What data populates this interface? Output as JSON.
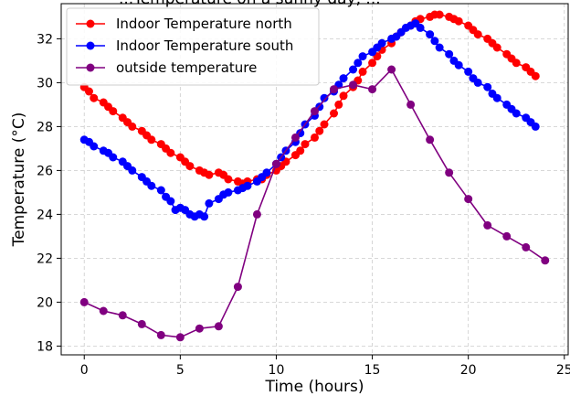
{
  "chart_data": {
    "type": "line",
    "title": "...Temperature on a sunny day, ...",
    "xlabel": "Time (hours)",
    "ylabel": "Temperature (°C)",
    "xlim": [
      -1.2,
      25.2
    ],
    "ylim": [
      17.6,
      33.6
    ],
    "xticks": [
      0,
      5,
      10,
      15,
      20,
      25
    ],
    "yticks": [
      18,
      20,
      22,
      24,
      26,
      28,
      30,
      32
    ],
    "grid": true,
    "legend_position": "top-left",
    "series": [
      {
        "name": "Indoor Temperature north",
        "color": "#ff0000",
        "marker_size": 4.5,
        "points": [
          [
            0,
            29.8
          ],
          [
            0.25,
            29.6
          ],
          [
            0.5,
            29.3
          ],
          [
            1,
            29.1
          ],
          [
            1.25,
            28.9
          ],
          [
            1.5,
            28.7
          ],
          [
            2,
            28.4
          ],
          [
            2.25,
            28.2
          ],
          [
            2.5,
            28.0
          ],
          [
            3,
            27.8
          ],
          [
            3.25,
            27.6
          ],
          [
            3.5,
            27.4
          ],
          [
            4,
            27.2
          ],
          [
            4.25,
            27.0
          ],
          [
            4.5,
            26.8
          ],
          [
            5,
            26.6
          ],
          [
            5.25,
            26.4
          ],
          [
            5.5,
            26.2
          ],
          [
            6,
            26.0
          ],
          [
            6.25,
            25.9
          ],
          [
            6.5,
            25.8
          ],
          [
            7,
            25.9
          ],
          [
            7.25,
            25.8
          ],
          [
            7.5,
            25.6
          ],
          [
            8,
            25.5
          ],
          [
            8.25,
            25.4
          ],
          [
            8.5,
            25.5
          ],
          [
            9,
            25.6
          ],
          [
            9.25,
            25.6
          ],
          [
            9.5,
            25.8
          ],
          [
            10,
            26.0
          ],
          [
            10.25,
            26.2
          ],
          [
            10.5,
            26.4
          ],
          [
            11,
            26.7
          ],
          [
            11.25,
            26.9
          ],
          [
            11.5,
            27.2
          ],
          [
            12,
            27.5
          ],
          [
            12.25,
            27.8
          ],
          [
            12.5,
            28.1
          ],
          [
            13,
            28.6
          ],
          [
            13.25,
            29.0
          ],
          [
            13.5,
            29.4
          ],
          [
            14,
            29.8
          ],
          [
            14.25,
            30.1
          ],
          [
            14.5,
            30.5
          ],
          [
            15,
            30.9
          ],
          [
            15.25,
            31.2
          ],
          [
            15.5,
            31.5
          ],
          [
            16,
            31.8
          ],
          [
            16.25,
            32.1
          ],
          [
            16.5,
            32.3
          ],
          [
            17,
            32.6
          ],
          [
            17.25,
            32.8
          ],
          [
            17.5,
            32.9
          ],
          [
            18,
            33.0
          ],
          [
            18.25,
            33.1
          ],
          [
            18.5,
            33.1
          ],
          [
            19,
            33.0
          ],
          [
            19.25,
            32.9
          ],
          [
            19.5,
            32.8
          ],
          [
            20,
            32.6
          ],
          [
            20.25,
            32.4
          ],
          [
            20.5,
            32.2
          ],
          [
            21,
            32.0
          ],
          [
            21.25,
            31.8
          ],
          [
            21.5,
            31.6
          ],
          [
            22,
            31.3
          ],
          [
            22.25,
            31.1
          ],
          [
            22.5,
            30.9
          ],
          [
            23,
            30.7
          ],
          [
            23.25,
            30.5
          ],
          [
            23.5,
            30.3
          ]
        ]
      },
      {
        "name": "Indoor Temperature south",
        "color": "#0000ff",
        "marker_size": 4.5,
        "points": [
          [
            0,
            27.4
          ],
          [
            0.25,
            27.3
          ],
          [
            0.5,
            27.1
          ],
          [
            1,
            26.9
          ],
          [
            1.25,
            26.8
          ],
          [
            1.5,
            26.6
          ],
          [
            2,
            26.4
          ],
          [
            2.25,
            26.2
          ],
          [
            2.5,
            26.0
          ],
          [
            3,
            25.7
          ],
          [
            3.25,
            25.5
          ],
          [
            3.5,
            25.3
          ],
          [
            4,
            25.1
          ],
          [
            4.25,
            24.8
          ],
          [
            4.5,
            24.6
          ],
          [
            4.75,
            24.2
          ],
          [
            5,
            24.3
          ],
          [
            5.25,
            24.2
          ],
          [
            5.5,
            24.0
          ],
          [
            5.75,
            23.9
          ],
          [
            6,
            24.0
          ],
          [
            6.25,
            23.9
          ],
          [
            6.5,
            24.5
          ],
          [
            7,
            24.7
          ],
          [
            7.25,
            24.9
          ],
          [
            7.5,
            25.0
          ],
          [
            8,
            25.1
          ],
          [
            8.25,
            25.2
          ],
          [
            8.5,
            25.3
          ],
          [
            9,
            25.5
          ],
          [
            9.25,
            25.7
          ],
          [
            9.5,
            25.9
          ],
          [
            10,
            26.3
          ],
          [
            10.25,
            26.6
          ],
          [
            10.5,
            26.9
          ],
          [
            11,
            27.3
          ],
          [
            11.25,
            27.7
          ],
          [
            11.5,
            28.1
          ],
          [
            12,
            28.5
          ],
          [
            12.25,
            28.9
          ],
          [
            12.5,
            29.3
          ],
          [
            13,
            29.6
          ],
          [
            13.25,
            29.9
          ],
          [
            13.5,
            30.2
          ],
          [
            14,
            30.6
          ],
          [
            14.25,
            30.9
          ],
          [
            14.5,
            31.2
          ],
          [
            15,
            31.4
          ],
          [
            15.25,
            31.6
          ],
          [
            15.5,
            31.8
          ],
          [
            16,
            32.0
          ],
          [
            16.25,
            32.1
          ],
          [
            16.5,
            32.3
          ],
          [
            16.75,
            32.5
          ],
          [
            17,
            32.6
          ],
          [
            17.25,
            32.7
          ],
          [
            17.5,
            32.5
          ],
          [
            18,
            32.2
          ],
          [
            18.25,
            31.9
          ],
          [
            18.5,
            31.6
          ],
          [
            19,
            31.3
          ],
          [
            19.25,
            31.0
          ],
          [
            19.5,
            30.8
          ],
          [
            20,
            30.5
          ],
          [
            20.25,
            30.2
          ],
          [
            20.5,
            30.0
          ],
          [
            21,
            29.8
          ],
          [
            21.25,
            29.5
          ],
          [
            21.5,
            29.3
          ],
          [
            22,
            29.0
          ],
          [
            22.25,
            28.8
          ],
          [
            22.5,
            28.6
          ],
          [
            23,
            28.4
          ],
          [
            23.25,
            28.2
          ],
          [
            23.5,
            28.0
          ]
        ]
      },
      {
        "name": "outside temperature",
        "color": "#800080",
        "marker_size": 4.5,
        "points": [
          [
            0,
            20.0
          ],
          [
            1,
            19.6
          ],
          [
            2,
            19.4
          ],
          [
            3,
            19.0
          ],
          [
            4,
            18.5
          ],
          [
            5,
            18.4
          ],
          [
            6,
            18.8
          ],
          [
            7,
            18.9
          ],
          [
            8,
            20.7
          ],
          [
            9,
            24.0
          ],
          [
            10,
            26.3
          ],
          [
            11,
            27.5
          ],
          [
            12,
            28.7
          ],
          [
            13,
            29.7
          ],
          [
            14,
            29.9
          ],
          [
            15,
            29.7
          ],
          [
            16,
            30.6
          ],
          [
            17,
            29.0
          ],
          [
            18,
            27.4
          ],
          [
            19,
            25.9
          ],
          [
            20,
            24.7
          ],
          [
            21,
            23.5
          ],
          [
            22,
            23.0
          ],
          [
            23,
            22.5
          ],
          [
            24,
            21.9
          ]
        ]
      }
    ]
  }
}
